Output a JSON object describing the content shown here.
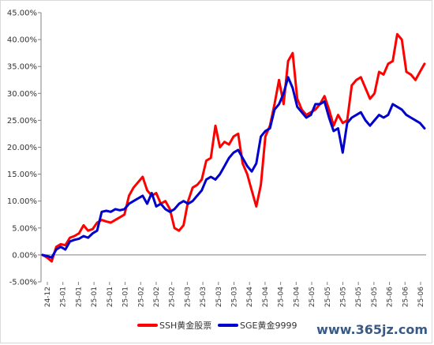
{
  "chart_data": {
    "type": "line",
    "title": "",
    "xlabel": "",
    "ylabel": "",
    "ylim": [
      -5,
      45
    ],
    "yticks": [
      -5,
      0,
      5,
      10,
      15,
      20,
      25,
      30,
      35,
      40,
      45
    ],
    "ytick_labels": [
      "-5.00%",
      "0.00%",
      "5.00%",
      "10.00%",
      "15.00%",
      "20.00%",
      "25.00%",
      "30.00%",
      "35.00%",
      "40.00%",
      "45.00%"
    ],
    "x_tick_labels": [
      "24-12",
      "25-01",
      "25-01",
      "25-01",
      "25-01",
      "25-01",
      "25-02",
      "25-02",
      "25-02",
      "25-03",
      "25-03",
      "25-03",
      "25-03",
      "25-04",
      "25-04",
      "25-04",
      "25-04",
      "25-05",
      "25-05",
      "25-05",
      "25-05",
      "25-05",
      "25-06",
      "25-06",
      "25-06"
    ],
    "legend_position": "bottom",
    "grid": false,
    "series": [
      {
        "name": "SSH黄金股票",
        "color": "#ff0000",
        "values": [
          0.0,
          -0.5,
          -1.2,
          1.5,
          2.0,
          1.8,
          3.2,
          3.5,
          4.0,
          5.5,
          4.5,
          4.8,
          6.0,
          6.5,
          6.2,
          6.0,
          6.5,
          7.0,
          7.5,
          11.0,
          12.5,
          13.5,
          14.5,
          12.0,
          11.0,
          11.5,
          9.5,
          10.0,
          8.5,
          5.0,
          4.5,
          5.5,
          10.0,
          12.5,
          13.0,
          14.0,
          17.5,
          18.0,
          24.0,
          20.0,
          21.0,
          20.5,
          22.0,
          22.5,
          17.0,
          15.0,
          12.0,
          9.0,
          13.0,
          22.0,
          24.0,
          28.0,
          32.5,
          28.0,
          36.0,
          37.5,
          29.0,
          27.0,
          26.0,
          26.5,
          27.0,
          28.0,
          29.5,
          27.0,
          24.0,
          26.0,
          24.5,
          25.0,
          31.5,
          32.5,
          33.0,
          31.0,
          29.0,
          30.0,
          34.0,
          33.5,
          35.5,
          36.0,
          41.0,
          40.0,
          34.0,
          33.5,
          32.5,
          34.0,
          35.5
        ]
      },
      {
        "name": "SGE黄金9999",
        "color": "#0000cc",
        "values": [
          0.0,
          -0.2,
          -0.5,
          1.0,
          1.5,
          1.0,
          2.5,
          2.8,
          3.0,
          3.5,
          3.2,
          4.0,
          4.5,
          8.0,
          8.2,
          8.0,
          8.5,
          8.3,
          8.5,
          9.5,
          10.0,
          10.5,
          11.0,
          9.5,
          11.5,
          9.0,
          9.5,
          8.5,
          8.0,
          8.5,
          9.5,
          10.0,
          9.5,
          10.0,
          11.0,
          12.0,
          14.0,
          14.5,
          14.0,
          15.0,
          16.5,
          18.0,
          19.0,
          19.5,
          18.0,
          16.5,
          15.5,
          17.0,
          22.0,
          23.0,
          23.5,
          27.0,
          28.0,
          30.0,
          33.0,
          31.0,
          27.5,
          26.5,
          25.5,
          26.0,
          28.0,
          28.0,
          28.5,
          25.5,
          23.0,
          23.5,
          19.0,
          24.5,
          25.5,
          26.0,
          26.5,
          25.0,
          24.0,
          25.0,
          26.0,
          25.5,
          26.0,
          28.0,
          27.5,
          27.0,
          26.0,
          25.5,
          25.0,
          24.5,
          23.5
        ]
      }
    ]
  },
  "watermark": "www.365jz.com"
}
